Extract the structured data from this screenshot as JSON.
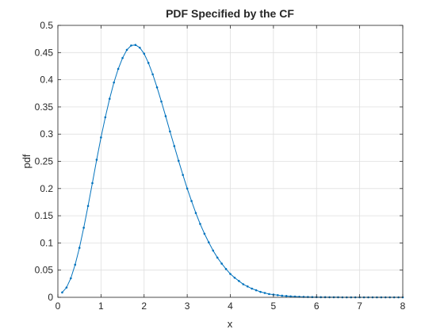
{
  "chart_data": {
    "type": "line",
    "title": "PDF Specified by the CF",
    "xlabel": "x",
    "ylabel": "pdf",
    "xlim": [
      0,
      8
    ],
    "ylim": [
      0,
      0.5
    ],
    "xticks": [
      "0",
      "1",
      "2",
      "3",
      "4",
      "5",
      "6",
      "7",
      "8"
    ],
    "yticks": [
      "0",
      "0.05",
      "0.1",
      "0.15",
      "0.2",
      "0.25",
      "0.3",
      "0.35",
      "0.4",
      "0.45",
      "0.5"
    ],
    "grid": true,
    "series": [
      {
        "color": "#0072BD",
        "marker": "dot",
        "x": [
          0.1,
          0.2,
          0.3,
          0.4,
          0.5,
          0.6,
          0.7,
          0.8,
          0.9,
          1.0,
          1.1,
          1.2,
          1.3,
          1.4,
          1.5,
          1.6,
          1.7,
          1.8,
          1.9,
          2.0,
          2.1,
          2.2,
          2.3,
          2.4,
          2.5,
          2.6,
          2.7,
          2.8,
          2.9,
          3.0,
          3.1,
          3.2,
          3.3,
          3.4,
          3.5,
          3.6,
          3.7,
          3.8,
          3.9,
          4.0,
          4.1,
          4.2,
          4.3,
          4.4,
          4.5,
          4.6,
          4.7,
          4.8,
          4.9,
          5.0,
          5.1,
          5.2,
          5.3,
          5.4,
          5.5,
          5.6,
          5.7,
          5.8,
          5.9,
          6.0,
          6.1,
          6.2,
          6.3,
          6.4,
          6.5,
          6.6,
          6.7,
          6.8,
          6.9,
          7.0,
          7.1,
          7.2,
          7.3,
          7.4,
          7.5,
          7.6,
          7.7,
          7.8,
          7.9,
          8.0
        ],
        "y": [
          0.009,
          0.018,
          0.035,
          0.06,
          0.091,
          0.128,
          0.168,
          0.21,
          0.253,
          0.294,
          0.331,
          0.365,
          0.395,
          0.42,
          0.44,
          0.455,
          0.463,
          0.464,
          0.459,
          0.448,
          0.431,
          0.41,
          0.386,
          0.36,
          0.333,
          0.305,
          0.278,
          0.251,
          0.225,
          0.2,
          0.177,
          0.155,
          0.135,
          0.117,
          0.101,
          0.086,
          0.073,
          0.062,
          0.052,
          0.043,
          0.036,
          0.03,
          0.024,
          0.02,
          0.016,
          0.013,
          0.01,
          0.008,
          0.006,
          0.005,
          0.004,
          0.003,
          0.0024,
          0.0018,
          0.0014,
          0.001,
          0.0008,
          0.0006,
          0.0004,
          0.0003,
          0.0002,
          0.0002,
          0.0001,
          0.0001,
          0.0001,
          0.0,
          0.0,
          0.0,
          0.0,
          0.0,
          0.0,
          0.0,
          0.0,
          0.0,
          0.0,
          0.0,
          0.0,
          0.0,
          0.0,
          0.0
        ]
      }
    ]
  }
}
